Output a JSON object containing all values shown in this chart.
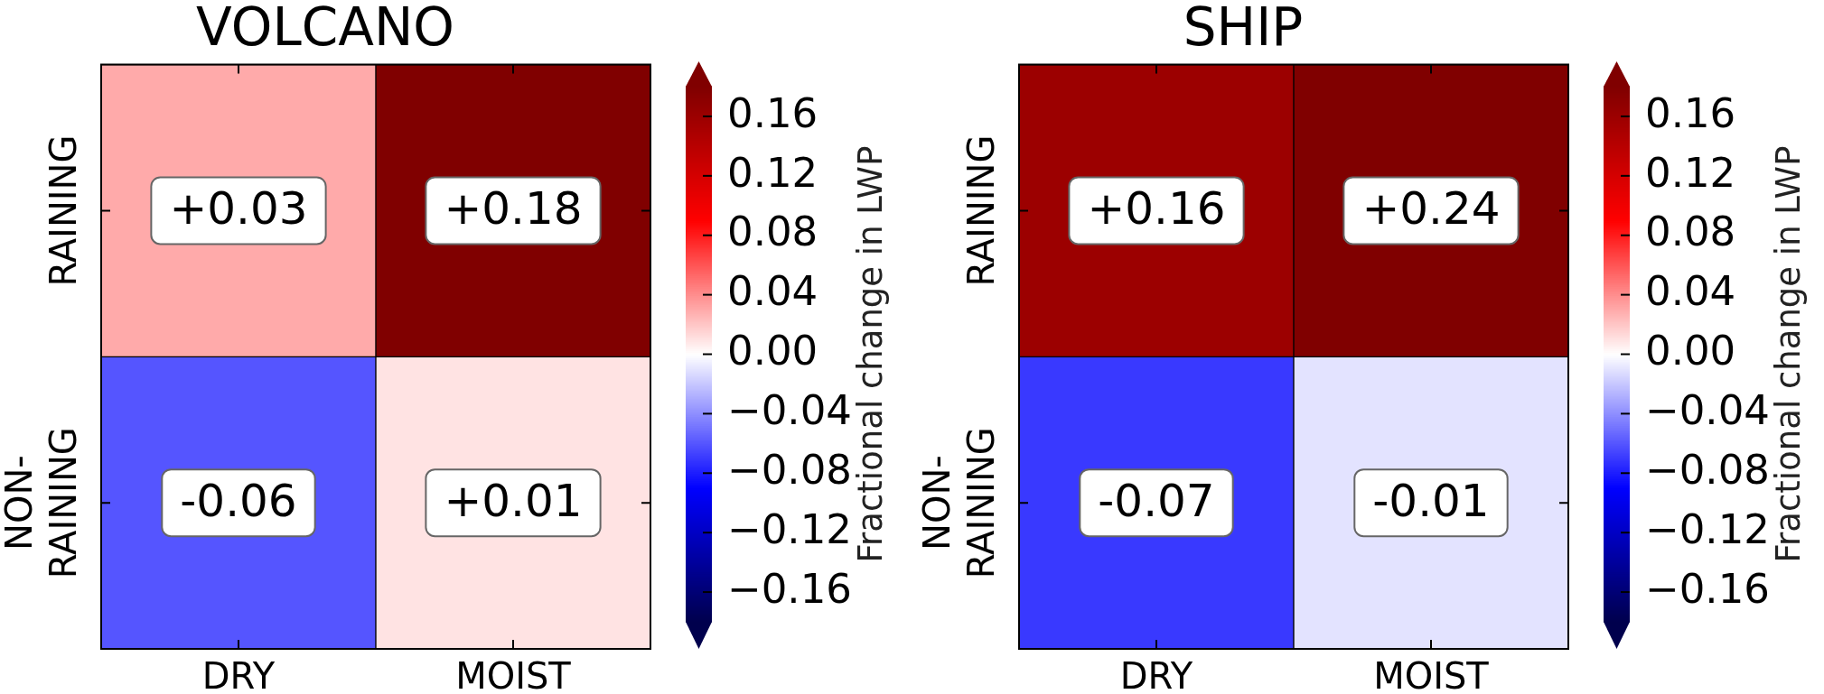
{
  "chart_data": [
    {
      "type": "heatmap",
      "title": "VOLCANO",
      "categories": [
        "DRY",
        "MOIST"
      ],
      "y_categories": [
        "RAINING",
        "NON-\nRAINING"
      ],
      "cells": [
        [
          0.03,
          0.18
        ],
        [
          -0.06,
          0.01
        ]
      ],
      "cell_labels": [
        [
          "+0.03",
          "+0.18"
        ],
        [
          "-0.06",
          "+0.01"
        ]
      ],
      "clim": [
        -0.18,
        0.18
      ],
      "cticks": [
        {
          "value": -0.16,
          "label": "−0.16"
        },
        {
          "value": -0.12,
          "label": "−0.12"
        },
        {
          "value": -0.08,
          "label": "−0.08"
        },
        {
          "value": -0.04,
          "label": "−0.04"
        },
        {
          "value": 0,
          "label": "0.00"
        },
        {
          "value": 0.04,
          "label": "0.04"
        },
        {
          "value": 0.08,
          "label": "0.08"
        },
        {
          "value": 0.12,
          "label": "0.12"
        },
        {
          "value": 0.16,
          "label": "0.16"
        }
      ],
      "clabel": "Fractional change in LWP"
    },
    {
      "type": "heatmap",
      "title": "SHIP",
      "categories": [
        "DRY",
        "MOIST"
      ],
      "y_categories": [
        "RAINING",
        "NON-\nRAINING"
      ],
      "cells": [
        [
          0.16,
          0.24
        ],
        [
          -0.07,
          -0.01
        ]
      ],
      "cell_labels": [
        [
          "+0.16",
          "+0.24"
        ],
        [
          "-0.07",
          "-0.01"
        ]
      ],
      "clim": [
        -0.18,
        0.18
      ],
      "cticks": [
        {
          "value": -0.16,
          "label": "−0.16"
        },
        {
          "value": -0.12,
          "label": "−0.12"
        },
        {
          "value": -0.08,
          "label": "−0.08"
        },
        {
          "value": -0.04,
          "label": "−0.04"
        },
        {
          "value": 0,
          "label": "0.00"
        },
        {
          "value": 0.04,
          "label": "0.04"
        },
        {
          "value": 0.08,
          "label": "0.08"
        },
        {
          "value": 0.12,
          "label": "0.12"
        },
        {
          "value": 0.16,
          "label": "0.16"
        }
      ],
      "clabel": "Fractional change in LWP"
    }
  ]
}
